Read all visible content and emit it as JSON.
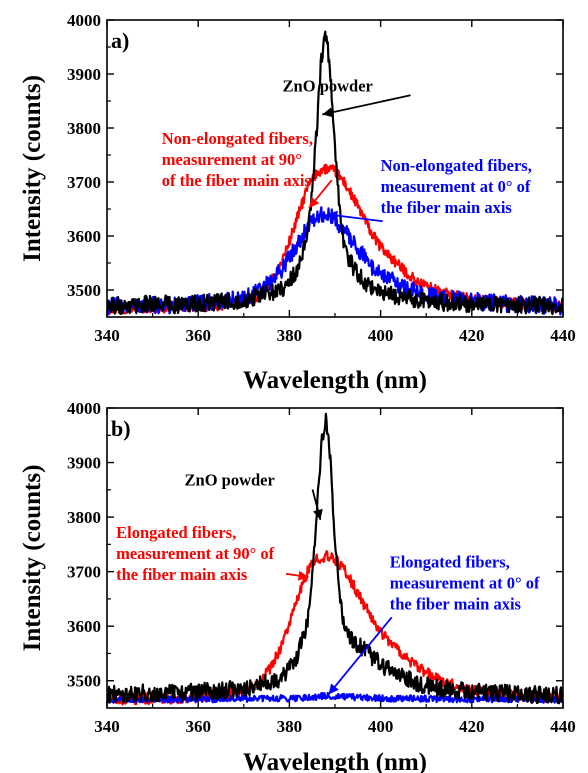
{
  "colors": {
    "ZnO powder": "#000000",
    "90°": "#ff0000",
    "0°": "#0000ff"
  },
  "chart_data": [
    {
      "type": "line",
      "panel_label": "a)",
      "xlabel": "Wavelength (nm)",
      "ylabel": "Intensity (counts)",
      "xlim": [
        340,
        440
      ],
      "ylim": [
        3450,
        4000
      ],
      "xticks": [
        "340",
        "360",
        "380",
        "400",
        "420",
        "440"
      ],
      "yticks": [
        "3500",
        "3600",
        "3700",
        "3800",
        "3900",
        "4000"
      ],
      "xtick_values": [
        340,
        360,
        380,
        400,
        420,
        440
      ],
      "ytick_values": [
        3500,
        3600,
        3700,
        3800,
        3900,
        4000
      ],
      "grid": false,
      "series": [
        {
          "name": "Non-elongated fibers, measurement at 90° of the fiber main axis",
          "color": "#ff0000",
          "x": [
            340,
            345,
            350,
            355,
            360,
            365,
            370,
            372,
            374,
            376,
            378,
            380,
            382,
            384,
            386,
            388,
            390,
            392,
            394,
            396,
            398,
            400,
            404,
            408,
            412,
            416,
            420,
            425,
            430,
            435,
            440
          ],
          "y": [
            3465,
            3467,
            3468,
            3468,
            3470,
            3472,
            3478,
            3485,
            3495,
            3515,
            3545,
            3590,
            3640,
            3690,
            3718,
            3725,
            3720,
            3700,
            3670,
            3640,
            3605,
            3580,
            3545,
            3515,
            3500,
            3490,
            3482,
            3478,
            3475,
            3472,
            3470
          ]
        },
        {
          "name": "Non-elongated fibers, measurement at 0° of the fiber main axis",
          "color": "#0000ff",
          "x": [
            340,
            345,
            350,
            355,
            360,
            365,
            370,
            374,
            378,
            380,
            382,
            384,
            386,
            388,
            390,
            392,
            394,
            396,
            398,
            400,
            404,
            408,
            412,
            416,
            420,
            425,
            430,
            435,
            440
          ],
          "y": [
            3470,
            3470,
            3472,
            3472,
            3475,
            3478,
            3485,
            3500,
            3535,
            3560,
            3590,
            3615,
            3635,
            3640,
            3630,
            3610,
            3590,
            3565,
            3545,
            3530,
            3510,
            3495,
            3488,
            3482,
            3480,
            3476,
            3474,
            3472,
            3470
          ]
        },
        {
          "name": "ZnO powder",
          "color": "#000000",
          "x": [
            340,
            345,
            350,
            355,
            360,
            365,
            370,
            374,
            378,
            380,
            382,
            384,
            385,
            386,
            387,
            388,
            389,
            390,
            391,
            392,
            394,
            396,
            398,
            400,
            404,
            408,
            412,
            416,
            420,
            425,
            430,
            435,
            440
          ],
          "y": [
            3470,
            3472,
            3475,
            3473,
            3475,
            3478,
            3482,
            3490,
            3500,
            3515,
            3540,
            3600,
            3680,
            3800,
            3930,
            3975,
            3900,
            3760,
            3650,
            3580,
            3540,
            3520,
            3505,
            3495,
            3488,
            3482,
            3478,
            3476,
            3475,
            3474,
            3473,
            3472,
            3471
          ]
        }
      ],
      "annotations": [
        {
          "text": "ZnO powder",
          "x": 378.5,
          "y": 3868,
          "arrow_to": [
            387.2,
            3825
          ],
          "color": "#000000"
        },
        {
          "lines": [
            "Non-elongated fibers,",
            "measurement at 90°",
            "of the fiber main axis"
          ],
          "x": 352,
          "y": 3770,
          "arrow_to": [
            384.3,
            3652
          ],
          "color": "#ff0000"
        },
        {
          "lines": [
            "Non-elongated fibers,",
            "measurement at 0° of",
            "the fiber main axis"
          ],
          "x": 400,
          "y": 3720,
          "arrow_to": [
            388.3,
            3640
          ],
          "color": "#0000ff"
        }
      ]
    },
    {
      "type": "line",
      "panel_label": "b)",
      "xlabel": "Wavelength (nm)",
      "ylabel": "Intensity (counts)",
      "xlim": [
        340,
        440
      ],
      "ylim": [
        3450,
        4000
      ],
      "xticks": [
        "340",
        "360",
        "380",
        "400",
        "420",
        "440"
      ],
      "yticks": [
        "3500",
        "3600",
        "3700",
        "3800",
        "3900",
        "4000"
      ],
      "xtick_values": [
        340,
        360,
        380,
        400,
        420,
        440
      ],
      "ytick_values": [
        3500,
        3600,
        3700,
        3800,
        3900,
        4000
      ],
      "grid": false,
      "series": [
        {
          "name": "Elongated fibers, measurement at 90° of the fiber main axis",
          "color": "#ff0000",
          "x": [
            340,
            345,
            350,
            355,
            360,
            365,
            370,
            372,
            374,
            376,
            378,
            380,
            382,
            384,
            386,
            388,
            390,
            392,
            394,
            396,
            398,
            400,
            404,
            408,
            412,
            416,
            420,
            425,
            430,
            435,
            440
          ],
          "y": [
            3465,
            3466,
            3467,
            3468,
            3470,
            3473,
            3480,
            3490,
            3505,
            3525,
            3560,
            3605,
            3655,
            3700,
            3725,
            3728,
            3722,
            3705,
            3675,
            3645,
            3615,
            3590,
            3555,
            3525,
            3505,
            3492,
            3484,
            3478,
            3474,
            3471,
            3469
          ]
        },
        {
          "name": "Elongated fibers, measurement at 0° of the fiber main axis",
          "color": "#0000ff",
          "x": [
            340,
            350,
            360,
            370,
            380,
            385,
            388,
            390,
            395,
            400,
            410,
            420,
            430,
            440
          ],
          "y": [
            3465,
            3466,
            3466,
            3467,
            3468,
            3470,
            3472,
            3471,
            3469,
            3468,
            3467,
            3466,
            3466,
            3465
          ]
        },
        {
          "name": "ZnO powder",
          "color": "#000000",
          "x": [
            340,
            345,
            350,
            355,
            360,
            365,
            370,
            374,
            378,
            380,
            382,
            384,
            385,
            386,
            387,
            388,
            389,
            390,
            391,
            392,
            394,
            396,
            398,
            400,
            404,
            408,
            412,
            416,
            420,
            425,
            430,
            435,
            440
          ],
          "y": [
            3475,
            3476,
            3478,
            3478,
            3480,
            3482,
            3486,
            3493,
            3505,
            3520,
            3550,
            3610,
            3690,
            3810,
            3930,
            3975,
            3905,
            3760,
            3660,
            3600,
            3570,
            3560,
            3545,
            3530,
            3510,
            3495,
            3488,
            3482,
            3480,
            3478,
            3476,
            3474,
            3473
          ]
        }
      ],
      "annotations": [
        {
          "text": "ZnO powder",
          "x": 357,
          "y": 3858,
          "arrow_to": [
            386.8,
            3795
          ],
          "color": "#000000"
        },
        {
          "lines": [
            "Elongated fibers,",
            "measurement at 90° of",
            "the fiber main axis"
          ],
          "x": 342,
          "y": 3762,
          "arrow_to": [
            384.2,
            3690
          ],
          "color": "#ff0000"
        },
        {
          "lines": [
            "Elongated fibers,",
            "measurement at 0° of",
            "the fiber main axis"
          ],
          "x": 402,
          "y": 3708,
          "arrow_to": [
            388.6,
            3475
          ],
          "color": "#0000ff"
        }
      ]
    }
  ]
}
